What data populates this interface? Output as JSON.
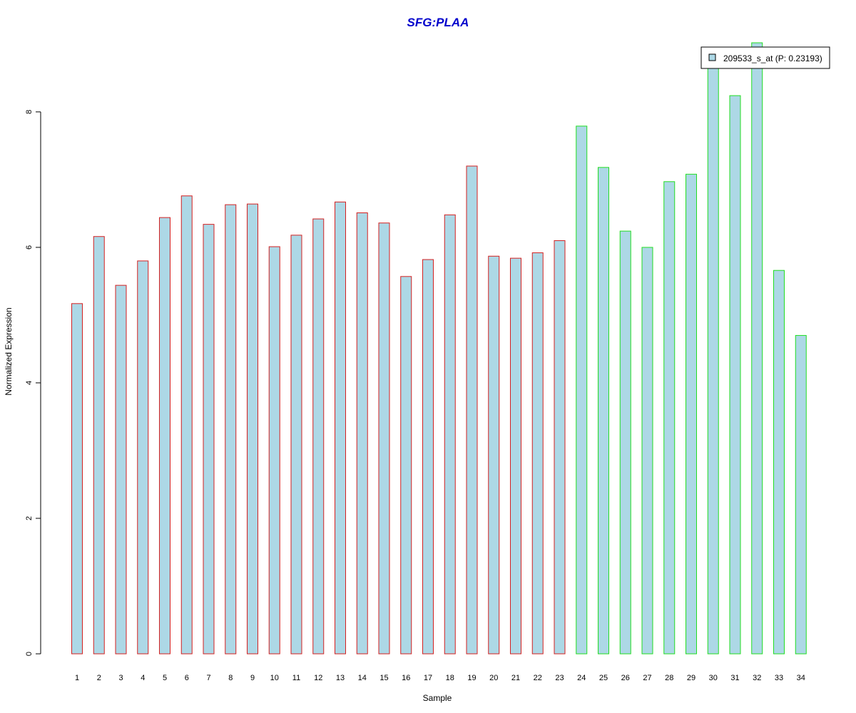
{
  "chart_data": {
    "type": "bar",
    "title": "SFG:PLAA",
    "xlabel": "Sample",
    "ylabel": "Normalized Expression",
    "categories": [
      "1",
      "2",
      "3",
      "4",
      "5",
      "6",
      "7",
      "8",
      "9",
      "10",
      "11",
      "12",
      "13",
      "14",
      "15",
      "16",
      "17",
      "18",
      "19",
      "20",
      "21",
      "22",
      "23",
      "24",
      "25",
      "26",
      "27",
      "28",
      "29",
      "30",
      "31",
      "32",
      "33",
      "34"
    ],
    "series": [
      {
        "name": "209533_s_at (P: 0.23193)",
        "values": [
          5.17,
          6.16,
          5.44,
          5.8,
          6.44,
          6.76,
          6.34,
          6.63,
          6.64,
          6.01,
          6.18,
          6.42,
          6.67,
          6.51,
          6.36,
          5.57,
          5.82,
          6.48,
          7.2,
          5.87,
          5.84,
          5.92,
          6.1,
          7.79,
          7.18,
          6.24,
          6.0,
          6.97,
          7.08,
          8.72,
          8.24,
          9.02,
          5.66,
          4.7
        ]
      }
    ],
    "group_colors": [
      "#d42020",
      "#d42020",
      "#d42020",
      "#d42020",
      "#d42020",
      "#d42020",
      "#d42020",
      "#d42020",
      "#d42020",
      "#d42020",
      "#d42020",
      "#d42020",
      "#d42020",
      "#d42020",
      "#d42020",
      "#d42020",
      "#d42020",
      "#d42020",
      "#d42020",
      "#d42020",
      "#d42020",
      "#d42020",
      "#d42020",
      "#22dd22",
      "#22dd22",
      "#22dd22",
      "#22dd22",
      "#22dd22",
      "#22dd22",
      "#22dd22",
      "#22dd22",
      "#22dd22",
      "#22dd22",
      "#22dd22"
    ],
    "bar_fill": "#add8e6",
    "title_color": "#0000cc",
    "yticks": [
      0,
      2,
      4,
      6,
      8
    ],
    "ylim": [
      0,
      9.02
    ],
    "legend_position": "top-right",
    "grid": false
  }
}
